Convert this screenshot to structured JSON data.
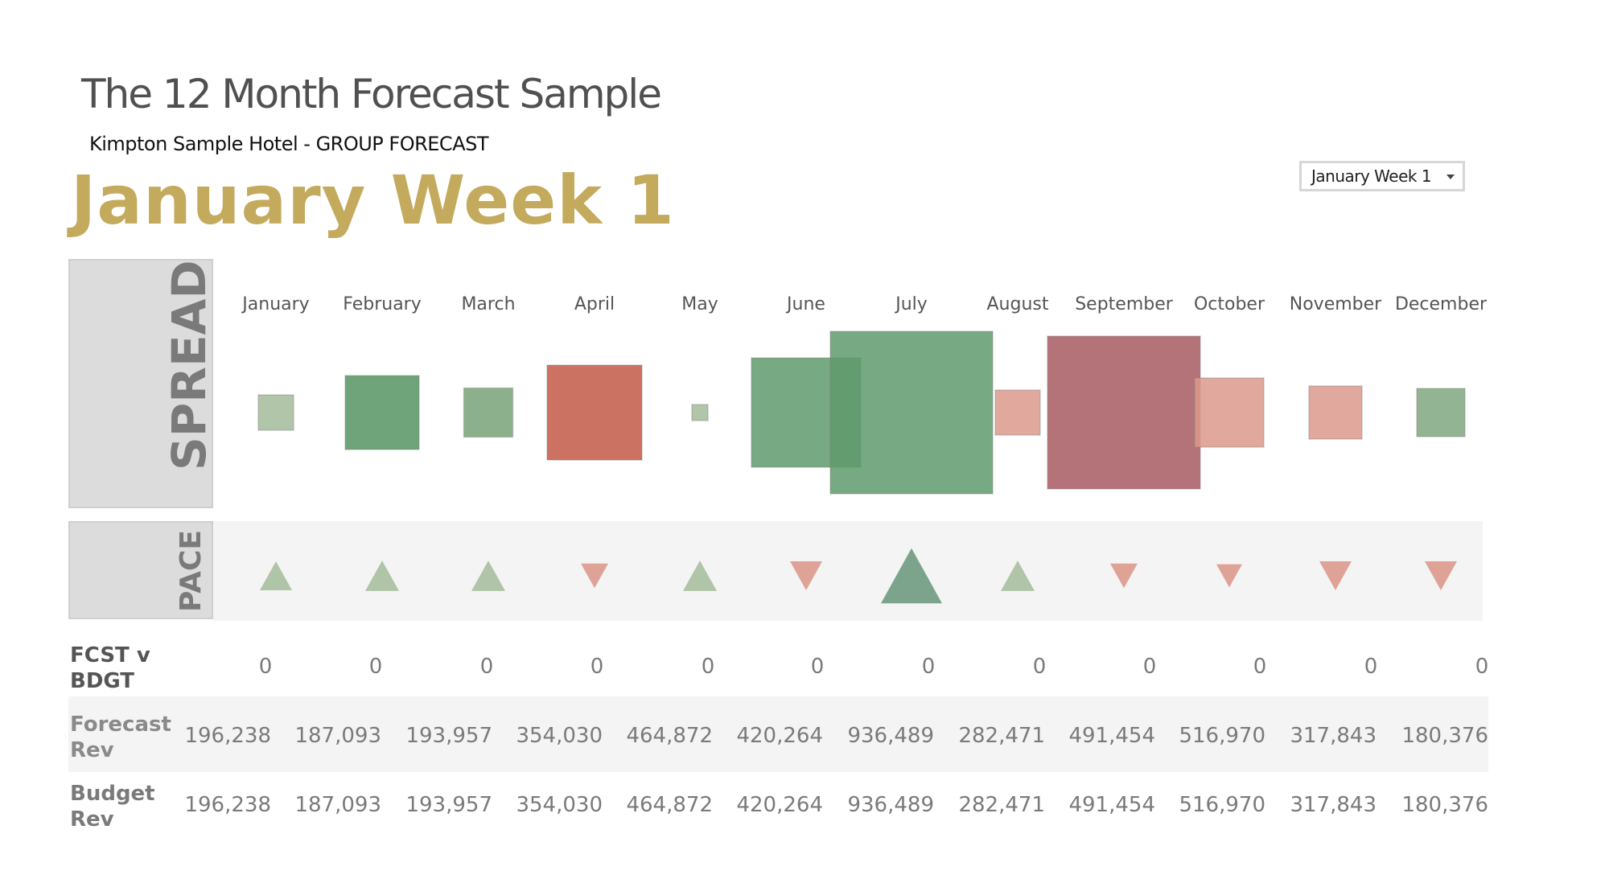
{
  "header": {
    "title": "The 12 Month Forecast Sample",
    "subtitle": "Kimpton Sample Hotel - GROUP FORECAST",
    "week_label": "January Week 1"
  },
  "filter": {
    "selected": "January Week 1"
  },
  "sections": {
    "spread_label": "SPREAD",
    "pace_label": "PACE"
  },
  "colors": {
    "green_light": "#a9bf9f",
    "green_mid": "#86ac86",
    "green_dark": "#5f9a6c",
    "red_light": "#dc9a8c",
    "red_mid": "#c96a5a",
    "red_dark": "#a75a62",
    "gold": "#c4aa5d"
  },
  "chart_data": {
    "type": "table",
    "months": [
      "January",
      "February",
      "March",
      "April",
      "May",
      "June",
      "July",
      "August",
      "September",
      "October",
      "November",
      "December"
    ],
    "spread": [
      {
        "month": "January",
        "direction": "positive",
        "shade": "light"
      },
      {
        "month": "February",
        "direction": "positive",
        "shade": "mid"
      },
      {
        "month": "March",
        "direction": "positive",
        "shade": "light"
      },
      {
        "month": "April",
        "direction": "negative",
        "shade": "mid"
      },
      {
        "month": "May",
        "direction": "positive",
        "shade": "light"
      },
      {
        "month": "June",
        "direction": "positive",
        "shade": "mid"
      },
      {
        "month": "July",
        "direction": "positive",
        "shade": "mid"
      },
      {
        "month": "August",
        "direction": "negative",
        "shade": "light"
      },
      {
        "month": "September",
        "direction": "negative",
        "shade": "dark"
      },
      {
        "month": "October",
        "direction": "negative",
        "shade": "light"
      },
      {
        "month": "November",
        "direction": "negative",
        "shade": "light"
      },
      {
        "month": "December",
        "direction": "positive",
        "shade": "light"
      }
    ],
    "pace": [
      {
        "month": "January",
        "direction": "up"
      },
      {
        "month": "February",
        "direction": "up"
      },
      {
        "month": "March",
        "direction": "up"
      },
      {
        "month": "April",
        "direction": "down"
      },
      {
        "month": "May",
        "direction": "up"
      },
      {
        "month": "June",
        "direction": "down"
      },
      {
        "month": "July",
        "direction": "up"
      },
      {
        "month": "August",
        "direction": "up"
      },
      {
        "month": "September",
        "direction": "down"
      },
      {
        "month": "October",
        "direction": "down"
      },
      {
        "month": "November",
        "direction": "down"
      },
      {
        "month": "December",
        "direction": "down"
      }
    ],
    "rows": [
      {
        "label": "FCST v\nBDGT",
        "values": [
          "0",
          "0",
          "0",
          "0",
          "0",
          "0",
          "0",
          "0",
          "0",
          "0",
          "0",
          "0"
        ]
      },
      {
        "label": "Forecast\nRev",
        "values": [
          "196,238",
          "187,093",
          "193,957",
          "354,030",
          "464,872",
          "420,264",
          "936,489",
          "282,471",
          "491,454",
          "516,970",
          "317,843",
          "180,376"
        ]
      },
      {
        "label": "Budget\nRev",
        "values": [
          "196,238",
          "187,093",
          "193,957",
          "354,030",
          "464,872",
          "420,264",
          "936,489",
          "282,471",
          "491,454",
          "516,970",
          "317,843",
          "180,376"
        ]
      }
    ]
  }
}
